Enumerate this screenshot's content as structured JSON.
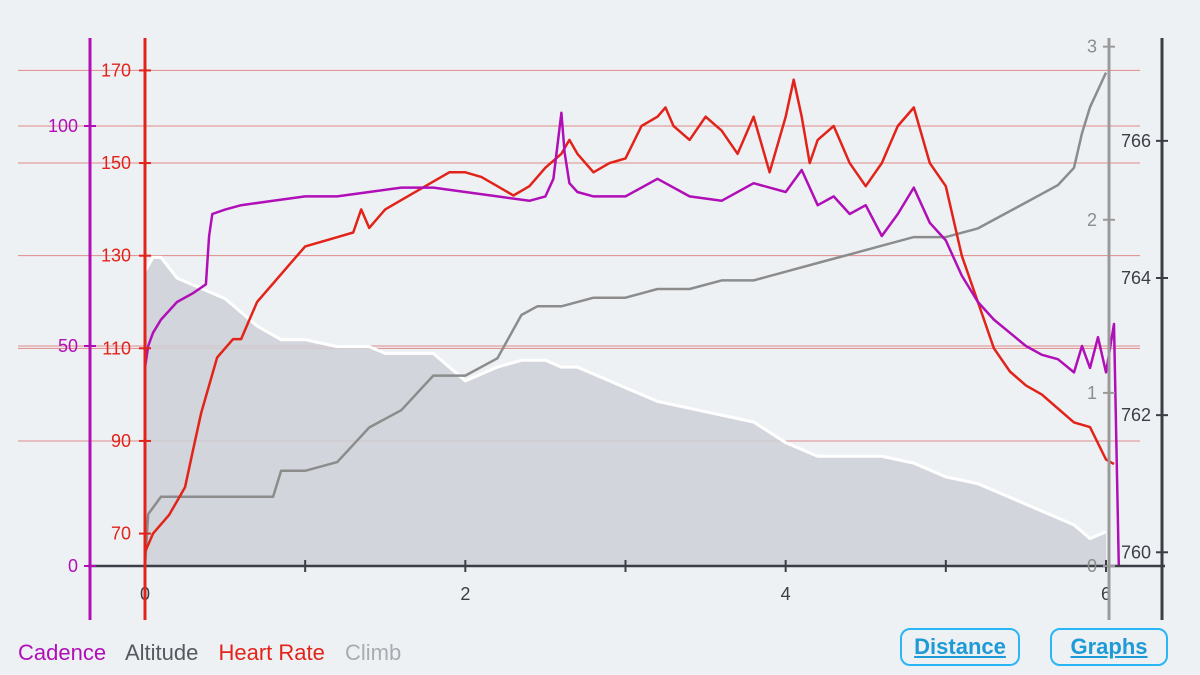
{
  "colors": {
    "cadence": "#b00fb8",
    "heart_rate": "#e2231a",
    "altitude": "#8c8c8c",
    "climb": "#ffffff",
    "climb_fill": "#cdd0d6",
    "grid": "#e08a8a",
    "axis": "#3a3f46"
  },
  "legend": {
    "cadence": "Cadence",
    "altitude": "Altitude",
    "heart_rate": "Heart Rate",
    "climb": "Climb"
  },
  "buttons": {
    "distance": "Distance",
    "graphs": "Graphs"
  },
  "chart_data": {
    "type": "line",
    "x_axis": {
      "range": [
        0,
        6.1
      ],
      "ticks": [
        "0",
        "2",
        "4",
        "6"
      ],
      "tick_values": [
        0,
        2,
        4,
        6
      ]
    },
    "axes": {
      "cadence": {
        "range": [
          0,
          120
        ],
        "ticks": [
          "0",
          "50",
          "100"
        ],
        "tick_values": [
          0,
          50,
          100
        ]
      },
      "heart_rate": {
        "range": [
          63,
          177
        ],
        "ticks": [
          "70",
          "90",
          "110",
          "130",
          "150",
          "170"
        ],
        "tick_values": [
          70,
          90,
          110,
          130,
          150,
          170
        ]
      },
      "altitude": {
        "range": [
          0,
          3.05
        ],
        "ticks": [
          "0",
          "1",
          "2",
          "3"
        ],
        "tick_values": [
          0,
          1,
          2,
          3
        ]
      },
      "climb": {
        "range": [
          759.8,
          767.5
        ],
        "ticks": [
          "760",
          "762",
          "764",
          "766"
        ],
        "tick_values": [
          760,
          762,
          764,
          766
        ]
      }
    },
    "grid": true,
    "series": [
      {
        "name": "Climb",
        "axis": "climb",
        "x": [
          0,
          0.05,
          0.1,
          0.2,
          0.3,
          0.5,
          0.7,
          0.85,
          1.0,
          1.2,
          1.4,
          1.5,
          1.7,
          1.8,
          1.9,
          2.0,
          2.1,
          2.2,
          2.35,
          2.5,
          2.6,
          2.7,
          2.8,
          2.9,
          3.0,
          3.2,
          3.4,
          3.6,
          3.8,
          4.0,
          4.2,
          4.4,
          4.6,
          4.8,
          5.0,
          5.2,
          5.4,
          5.6,
          5.8,
          5.9,
          6.0
        ],
        "values": [
          764.1,
          764.3,
          764.3,
          764.0,
          763.9,
          763.7,
          763.3,
          763.1,
          763.1,
          763.0,
          763.0,
          762.9,
          762.9,
          762.9,
          762.7,
          762.5,
          762.6,
          762.7,
          762.8,
          762.8,
          762.7,
          762.7,
          762.6,
          762.5,
          762.4,
          762.2,
          762.1,
          762.0,
          761.9,
          761.6,
          761.4,
          761.4,
          761.4,
          761.3,
          761.1,
          761.0,
          760.8,
          760.6,
          760.4,
          760.2,
          760.3
        ]
      },
      {
        "name": "Altitude",
        "axis": "altitude",
        "x": [
          0,
          0.02,
          0.1,
          0.3,
          0.5,
          0.8,
          0.85,
          1.0,
          1.2,
          1.3,
          1.4,
          1.6,
          1.8,
          1.85,
          2.0,
          2.2,
          2.35,
          2.45,
          2.6,
          2.8,
          3.0,
          3.2,
          3.4,
          3.6,
          3.8,
          4.0,
          4.2,
          4.4,
          4.6,
          4.8,
          5.0,
          5.2,
          5.4,
          5.5,
          5.6,
          5.7,
          5.8,
          5.85,
          5.9,
          6.0
        ],
        "values": [
          0,
          0.3,
          0.4,
          0.4,
          0.4,
          0.4,
          0.55,
          0.55,
          0.6,
          0.7,
          0.8,
          0.9,
          1.1,
          1.1,
          1.1,
          1.2,
          1.45,
          1.5,
          1.5,
          1.55,
          1.55,
          1.6,
          1.6,
          1.65,
          1.65,
          1.7,
          1.75,
          1.8,
          1.85,
          1.9,
          1.9,
          1.95,
          2.05,
          2.1,
          2.15,
          2.2,
          2.3,
          2.5,
          2.65,
          2.85
        ]
      },
      {
        "name": "Heart Rate",
        "axis": "heart_rate",
        "x": [
          0,
          0.05,
          0.1,
          0.15,
          0.2,
          0.25,
          0.3,
          0.35,
          0.4,
          0.45,
          0.5,
          0.55,
          0.6,
          0.65,
          0.7,
          0.75,
          0.8,
          0.9,
          1.0,
          1.1,
          1.2,
          1.3,
          1.35,
          1.4,
          1.5,
          1.6,
          1.7,
          1.8,
          1.9,
          2.0,
          2.1,
          2.2,
          2.3,
          2.4,
          2.5,
          2.6,
          2.65,
          2.7,
          2.8,
          2.9,
          3.0,
          3.1,
          3.2,
          3.25,
          3.3,
          3.4,
          3.5,
          3.6,
          3.7,
          3.8,
          3.9,
          4.0,
          4.05,
          4.1,
          4.15,
          4.2,
          4.3,
          4.4,
          4.5,
          4.6,
          4.7,
          4.8,
          4.9,
          5.0,
          5.1,
          5.2,
          5.3,
          5.4,
          5.5,
          5.6,
          5.7,
          5.8,
          5.9,
          6.0,
          6.05
        ],
        "values": [
          66,
          70,
          72,
          74,
          77,
          80,
          88,
          96,
          102,
          108,
          110,
          112,
          112,
          116,
          120,
          122,
          124,
          128,
          132,
          133,
          134,
          135,
          140,
          136,
          140,
          142,
          144,
          146,
          148,
          148,
          147,
          145,
          143,
          145,
          149,
          152,
          155,
          152,
          148,
          150,
          151,
          158,
          160,
          162,
          158,
          155,
          160,
          157,
          152,
          160,
          148,
          160,
          168,
          160,
          150,
          155,
          158,
          150,
          145,
          150,
          158,
          162,
          150,
          145,
          130,
          120,
          110,
          105,
          102,
          100,
          97,
          94,
          93,
          86,
          85
        ]
      },
      {
        "name": "Cadence",
        "axis": "cadence",
        "x": [
          0,
          0.02,
          0.05,
          0.1,
          0.15,
          0.2,
          0.3,
          0.38,
          0.4,
          0.42,
          0.5,
          0.6,
          0.8,
          1.0,
          1.2,
          1.4,
          1.6,
          1.8,
          2.0,
          2.2,
          2.4,
          2.5,
          2.55,
          2.6,
          2.62,
          2.65,
          2.7,
          2.8,
          3.0,
          3.2,
          3.4,
          3.6,
          3.8,
          4.0,
          4.1,
          4.2,
          4.3,
          4.4,
          4.5,
          4.6,
          4.7,
          4.8,
          4.9,
          5.0,
          5.1,
          5.2,
          5.3,
          5.4,
          5.5,
          5.6,
          5.7,
          5.8,
          5.85,
          5.9,
          5.95,
          6.0,
          6.05,
          6.08
        ],
        "values": [
          45,
          50,
          53,
          56,
          58,
          60,
          62,
          64,
          75,
          80,
          81,
          82,
          83,
          84,
          84,
          85,
          86,
          86,
          85,
          84,
          83,
          84,
          88,
          103,
          94,
          87,
          85,
          84,
          84,
          88,
          84,
          83,
          87,
          85,
          90,
          82,
          84,
          80,
          82,
          75,
          80,
          86,
          78,
          74,
          66,
          60,
          56,
          53,
          50,
          48,
          47,
          44,
          50,
          45,
          52,
          44,
          55,
          0
        ]
      }
    ]
  }
}
